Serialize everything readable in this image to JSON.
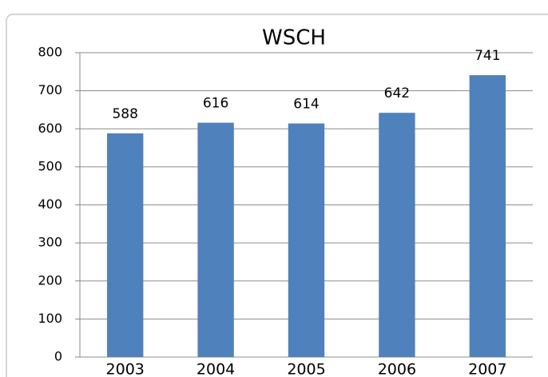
{
  "chart_data": {
    "type": "bar",
    "title": "WSCH",
    "categories": [
      "2003",
      "2004",
      "2005",
      "2006",
      "2007"
    ],
    "values": [
      588,
      616,
      614,
      642,
      741
    ],
    "color": "#4f81bd",
    "ylim": [
      0,
      800
    ],
    "yticks": [
      0,
      100,
      200,
      300,
      400,
      500,
      600,
      700,
      800
    ],
    "grid": true
  }
}
